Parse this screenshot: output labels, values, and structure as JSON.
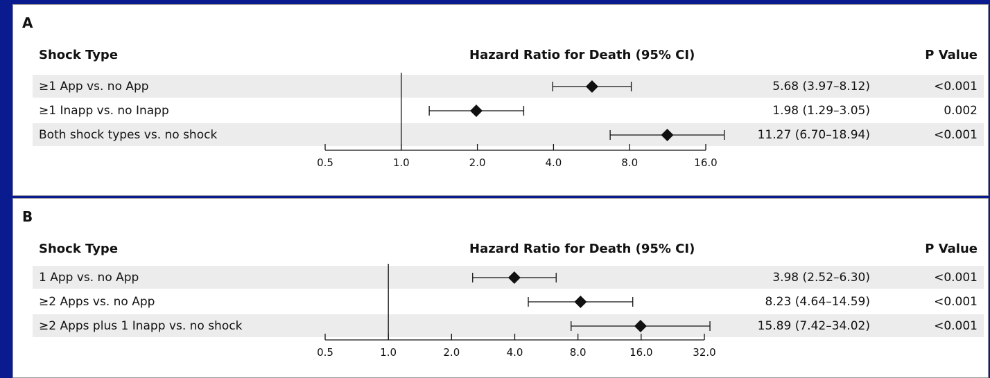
{
  "colors": {
    "background": "#0a1a8f",
    "panel": "#ffffff",
    "row_shade": "#ececec",
    "ink": "#111111"
  },
  "chart_data": [
    {
      "type": "forest",
      "panel": "A",
      "header_label": "Shock Type",
      "xlabel": "Hazard Ratio for Death (95% CI)",
      "pvalue_header": "P Value",
      "x_scale": "log2",
      "xlim": [
        0.5,
        16.0
      ],
      "ticks": [
        0.5,
        1.0,
        2.0,
        4.0,
        8.0,
        16.0
      ],
      "tick_labels": [
        "0.5",
        "1.0",
        "2.0",
        "4.0",
        "8.0",
        "16.0"
      ],
      "reference_line": 1.0,
      "rows": [
        {
          "label": "≥1 App vs. no App",
          "hr": 5.68,
          "lo": 3.97,
          "hi": 8.12,
          "hr_text": "5.68 (3.97–8.12)",
          "p": "<0.001"
        },
        {
          "label": "≥1 Inapp vs. no Inapp",
          "hr": 1.98,
          "lo": 1.29,
          "hi": 3.05,
          "hr_text": "1.98 (1.29–3.05)",
          "p": "0.002"
        },
        {
          "label": "Both shock types vs. no shock",
          "hr": 11.27,
          "lo": 6.7,
          "hi": 18.94,
          "hr_text": "11.27 (6.70–18.94)",
          "p": "<0.001"
        }
      ]
    },
    {
      "type": "forest",
      "panel": "B",
      "header_label": "Shock Type",
      "xlabel": "Hazard Ratio for Death (95% CI)",
      "pvalue_header": "P Value",
      "x_scale": "log2",
      "xlim": [
        0.5,
        32.0
      ],
      "ticks": [
        0.5,
        1.0,
        2.0,
        4.0,
        8.0,
        16.0,
        32.0
      ],
      "tick_labels": [
        "0.5",
        "1.0",
        "2.0",
        "4.0",
        "8.0",
        "16.0",
        "32.0"
      ],
      "reference_line": 1.0,
      "rows": [
        {
          "label": "1 App vs. no App",
          "hr": 3.98,
          "lo": 2.52,
          "hi": 6.3,
          "hr_text": "3.98 (2.52–6.30)",
          "p": "<0.001"
        },
        {
          "label": "≥2 Apps vs. no App",
          "hr": 8.23,
          "lo": 4.64,
          "hi": 14.59,
          "hr_text": "8.23 (4.64–14.59)",
          "p": "<0.001"
        },
        {
          "label": "≥2 Apps plus 1 Inapp vs. no shock",
          "hr": 15.89,
          "lo": 7.42,
          "hi": 34.02,
          "hr_text": "15.89 (7.42–34.02)",
          "p": "<0.001"
        }
      ]
    }
  ]
}
